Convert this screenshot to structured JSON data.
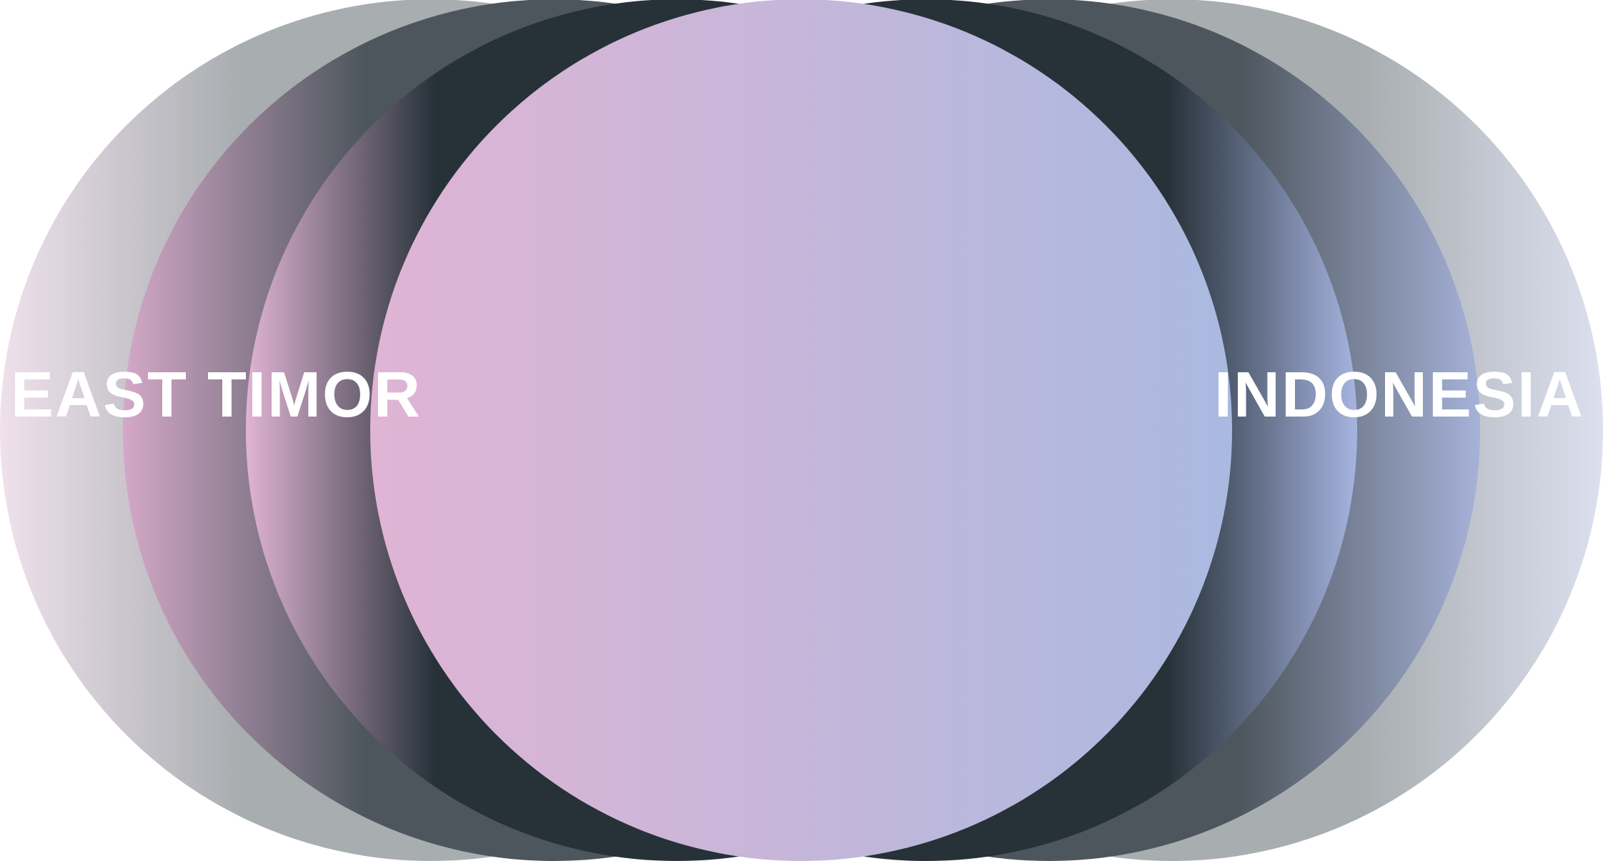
{
  "labels": {
    "left": "EAST TIMOR",
    "right": "INDONESIA"
  },
  "colors": {
    "pink": "#e0b4d4",
    "lavender": "#aab9e0",
    "dark": "#263138",
    "mid": "#4d565d",
    "light": "#a8adb0",
    "outer_pale_left": "#efe1ec",
    "outer_pale_right": "#dce0ef"
  }
}
